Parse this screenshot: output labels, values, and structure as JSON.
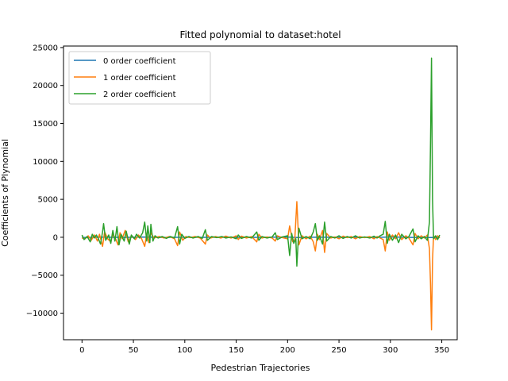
{
  "chart_data": {
    "type": "line",
    "title": "Fitted polynomial to dataset:hotel",
    "xlabel": "Pedestrian Trajectories",
    "ylabel": "Coefficients of Plynomial",
    "xlim": [
      -18,
      365
    ],
    "ylim": [
      -13500,
      25200
    ],
    "xticks": [
      0,
      50,
      100,
      150,
      200,
      250,
      300,
      350
    ],
    "yticks": [
      -10000,
      -5000,
      0,
      5000,
      10000,
      15000,
      20000,
      25000
    ],
    "legend_position": "upper left",
    "grid": false,
    "series": [
      {
        "name": "0 order coefficient",
        "color": "#1f77b4",
        "points": [
          [
            0,
            -30
          ],
          [
            20,
            20
          ],
          [
            40,
            -20
          ],
          [
            60,
            30
          ],
          [
            80,
            -20
          ],
          [
            100,
            10
          ],
          [
            120,
            -10
          ],
          [
            140,
            20
          ],
          [
            160,
            -20
          ],
          [
            180,
            10
          ],
          [
            200,
            30
          ],
          [
            210,
            -40
          ],
          [
            230,
            20
          ],
          [
            250,
            -10
          ],
          [
            270,
            20
          ],
          [
            290,
            -10
          ],
          [
            300,
            40
          ],
          [
            320,
            -20
          ],
          [
            340,
            -30
          ],
          [
            347,
            10
          ]
        ]
      },
      {
        "name": "1 order coefficient",
        "color": "#ff7f0e",
        "points": [
          [
            0,
            -100
          ],
          [
            3,
            -200
          ],
          [
            6,
            200
          ],
          [
            9,
            -400
          ],
          [
            12,
            300
          ],
          [
            15,
            -500
          ],
          [
            17,
            400
          ],
          [
            20,
            -1200
          ],
          [
            22,
            700
          ],
          [
            25,
            -200
          ],
          [
            28,
            -600
          ],
          [
            30,
            400
          ],
          [
            33,
            -300
          ],
          [
            35,
            -1000
          ],
          [
            37,
            600
          ],
          [
            39,
            -200
          ],
          [
            42,
            900
          ],
          [
            45,
            -600
          ],
          [
            48,
            200
          ],
          [
            52,
            -300
          ],
          [
            55,
            300
          ],
          [
            58,
            -200
          ],
          [
            61,
            -1200
          ],
          [
            63,
            500
          ],
          [
            65,
            -700
          ],
          [
            67,
            600
          ],
          [
            70,
            -100
          ],
          [
            75,
            100
          ],
          [
            80,
            -100
          ],
          [
            85,
            100
          ],
          [
            90,
            -200
          ],
          [
            93,
            -1100
          ],
          [
            95,
            700
          ],
          [
            98,
            -400
          ],
          [
            101,
            100
          ],
          [
            105,
            -50
          ],
          [
            110,
            100
          ],
          [
            115,
            -100
          ],
          [
            120,
            -900
          ],
          [
            122,
            300
          ],
          [
            125,
            -100
          ],
          [
            130,
            100
          ],
          [
            135,
            -100
          ],
          [
            140,
            150
          ],
          [
            145,
            -100
          ],
          [
            150,
            200
          ],
          [
            152,
            -300
          ],
          [
            155,
            150
          ],
          [
            160,
            -100
          ],
          [
            165,
            100
          ],
          [
            170,
            -600
          ],
          [
            172,
            400
          ],
          [
            175,
            -100
          ],
          [
            180,
            50
          ],
          [
            185,
            -100
          ],
          [
            188,
            -500
          ],
          [
            190,
            200
          ],
          [
            195,
            -50
          ],
          [
            200,
            -200
          ],
          [
            202,
            1500
          ],
          [
            205,
            -600
          ],
          [
            207,
            -300
          ],
          [
            209,
            4700
          ],
          [
            211,
            -1000
          ],
          [
            214,
            200
          ],
          [
            218,
            -200
          ],
          [
            222,
            150
          ],
          [
            225,
            -600
          ],
          [
            227,
            -1800
          ],
          [
            229,
            400
          ],
          [
            231,
            -300
          ],
          [
            234,
            900
          ],
          [
            236,
            -2000
          ],
          [
            238,
            500
          ],
          [
            242,
            -100
          ],
          [
            246,
            50
          ],
          [
            250,
            -200
          ],
          [
            254,
            150
          ],
          [
            258,
            -50
          ],
          [
            262,
            100
          ],
          [
            266,
            -200
          ],
          [
            270,
            100
          ],
          [
            275,
            -50
          ],
          [
            280,
            100
          ],
          [
            284,
            -200
          ],
          [
            287,
            100
          ],
          [
            290,
            -100
          ],
          [
            293,
            -300
          ],
          [
            295,
            -1800
          ],
          [
            297,
            700
          ],
          [
            299,
            -400
          ],
          [
            302,
            300
          ],
          [
            305,
            -200
          ],
          [
            308,
            600
          ],
          [
            311,
            -300
          ],
          [
            315,
            200
          ],
          [
            318,
            -100
          ],
          [
            322,
            -1000
          ],
          [
            324,
            500
          ],
          [
            327,
            -200
          ],
          [
            330,
            200
          ],
          [
            333,
            -100
          ],
          [
            336,
            300
          ],
          [
            338,
            -1500
          ],
          [
            339,
            -6000
          ],
          [
            340,
            -12200
          ],
          [
            341,
            -3000
          ],
          [
            342,
            200
          ],
          [
            344,
            -300
          ],
          [
            346,
            200
          ],
          [
            348,
            -100
          ]
        ]
      },
      {
        "name": "2 order coefficient",
        "color": "#2ca02c",
        "points": [
          [
            0,
            300
          ],
          [
            2,
            -300
          ],
          [
            5,
            100
          ],
          [
            8,
            -600
          ],
          [
            10,
            400
          ],
          [
            12,
            -100
          ],
          [
            14,
            300
          ],
          [
            16,
            -200
          ],
          [
            18,
            -900
          ],
          [
            20,
            700
          ],
          [
            21,
            1800
          ],
          [
            23,
            -400
          ],
          [
            26,
            300
          ],
          [
            28,
            -800
          ],
          [
            30,
            900
          ],
          [
            32,
            -500
          ],
          [
            34,
            1400
          ],
          [
            36,
            -1000
          ],
          [
            38,
            400
          ],
          [
            41,
            -500
          ],
          [
            43,
            800
          ],
          [
            46,
            -900
          ],
          [
            48,
            300
          ],
          [
            51,
            -200
          ],
          [
            53,
            400
          ],
          [
            56,
            -100
          ],
          [
            59,
            600
          ],
          [
            61,
            2000
          ],
          [
            63,
            -500
          ],
          [
            64,
            1500
          ],
          [
            66,
            -700
          ],
          [
            67,
            1700
          ],
          [
            69,
            -500
          ],
          [
            71,
            200
          ],
          [
            74,
            -100
          ],
          [
            78,
            100
          ],
          [
            82,
            -150
          ],
          [
            86,
            100
          ],
          [
            90,
            -100
          ],
          [
            93,
            1400
          ],
          [
            95,
            -900
          ],
          [
            97,
            400
          ],
          [
            100,
            -150
          ],
          [
            104,
            100
          ],
          [
            108,
            -100
          ],
          [
            113,
            100
          ],
          [
            117,
            -150
          ],
          [
            120,
            1000
          ],
          [
            122,
            -400
          ],
          [
            126,
            100
          ],
          [
            131,
            -50
          ],
          [
            136,
            100
          ],
          [
            140,
            -100
          ],
          [
            145,
            50
          ],
          [
            150,
            -200
          ],
          [
            152,
            300
          ],
          [
            155,
            -150
          ],
          [
            160,
            100
          ],
          [
            165,
            -100
          ],
          [
            170,
            700
          ],
          [
            172,
            -400
          ],
          [
            175,
            100
          ],
          [
            180,
            -100
          ],
          [
            185,
            50
          ],
          [
            188,
            600
          ],
          [
            190,
            -300
          ],
          [
            195,
            50
          ],
          [
            200,
            200
          ],
          [
            202,
            -2400
          ],
          [
            204,
            500
          ],
          [
            206,
            -800
          ],
          [
            208,
            -200
          ],
          [
            209,
            -3800
          ],
          [
            211,
            1200
          ],
          [
            214,
            -200
          ],
          [
            218,
            100
          ],
          [
            222,
            -200
          ],
          [
            225,
            700
          ],
          [
            227,
            1800
          ],
          [
            229,
            -400
          ],
          [
            231,
            200
          ],
          [
            234,
            -900
          ],
          [
            236,
            2000
          ],
          [
            238,
            -500
          ],
          [
            242,
            100
          ],
          [
            246,
            -100
          ],
          [
            250,
            200
          ],
          [
            254,
            -150
          ],
          [
            258,
            100
          ],
          [
            262,
            -100
          ],
          [
            266,
            200
          ],
          [
            270,
            -100
          ],
          [
            275,
            50
          ],
          [
            280,
            -100
          ],
          [
            284,
            150
          ],
          [
            287,
            -100
          ],
          [
            290,
            200
          ],
          [
            293,
            400
          ],
          [
            295,
            2100
          ],
          [
            297,
            -800
          ],
          [
            299,
            400
          ],
          [
            302,
            -400
          ],
          [
            305,
            300
          ],
          [
            308,
            -700
          ],
          [
            311,
            400
          ],
          [
            315,
            -200
          ],
          [
            318,
            100
          ],
          [
            322,
            1100
          ],
          [
            324,
            -600
          ],
          [
            327,
            200
          ],
          [
            330,
            -200
          ],
          [
            333,
            100
          ],
          [
            336,
            -400
          ],
          [
            338,
            2000
          ],
          [
            339,
            12000
          ],
          [
            340,
            23600
          ],
          [
            341,
            5000
          ],
          [
            342,
            -200
          ],
          [
            344,
            200
          ],
          [
            346,
            -300
          ],
          [
            348,
            300
          ]
        ]
      }
    ]
  }
}
